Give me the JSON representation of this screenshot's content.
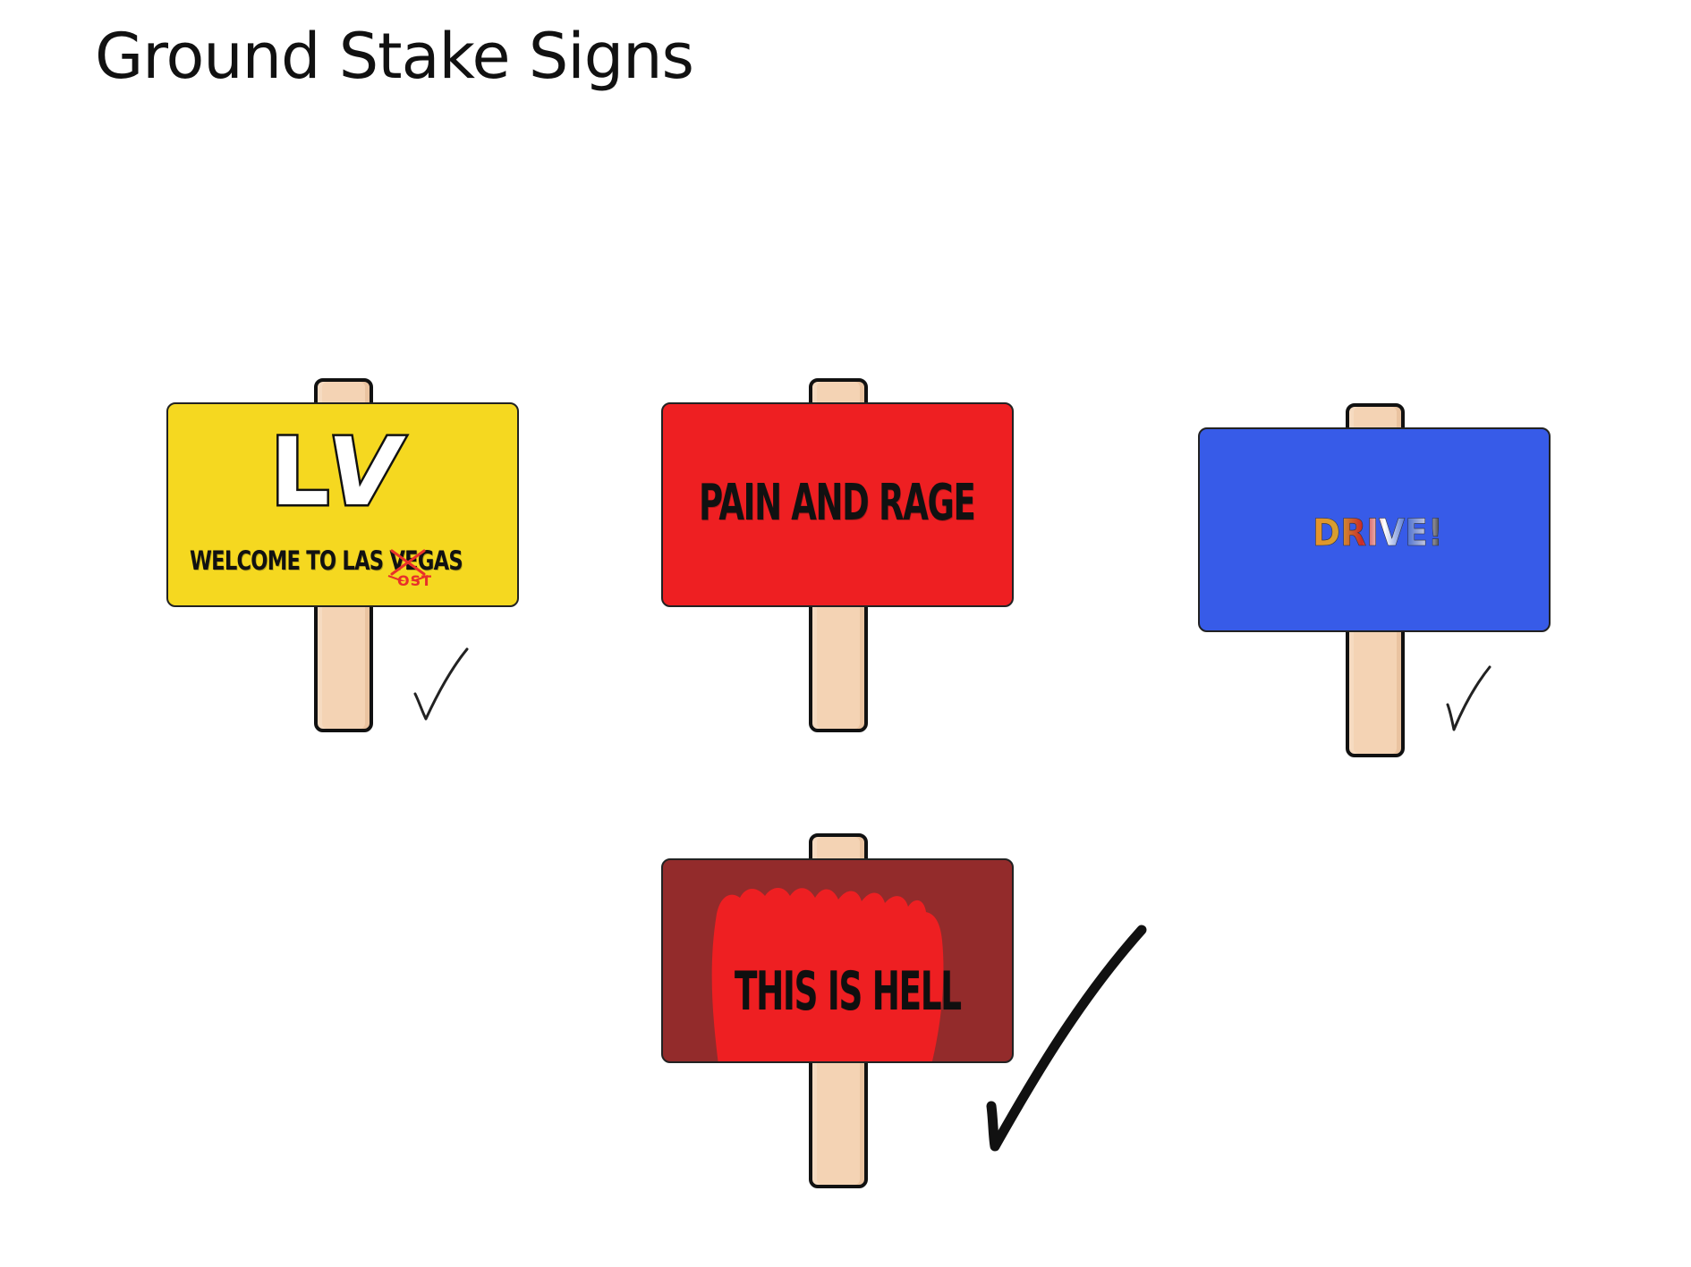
{
  "page": {
    "title": "Ground Stake Signs"
  },
  "signs": [
    {
      "color": "#f5d820",
      "logo": "LV",
      "text_before": "WELCOME TO L",
      "struck_letters": "AS",
      "correction": "OST",
      "text_after": " VEGAS",
      "correction_color": "#e8302a",
      "checked": true
    },
    {
      "color": "#ee1f22",
      "text": "PAIN AND RAGE",
      "checked": false
    },
    {
      "color": "#375be8",
      "text": "DRIVE!",
      "letter_colors": [
        "#e8902a",
        "#d4a030",
        "#c82a2a",
        "#ffffff",
        "#4a6fd0",
        "#5a55a8"
      ],
      "checked": true
    },
    {
      "color": "#932b2b",
      "flame_color": "#ee1f22",
      "text": "THIS IS HELL",
      "checked": true
    }
  ]
}
